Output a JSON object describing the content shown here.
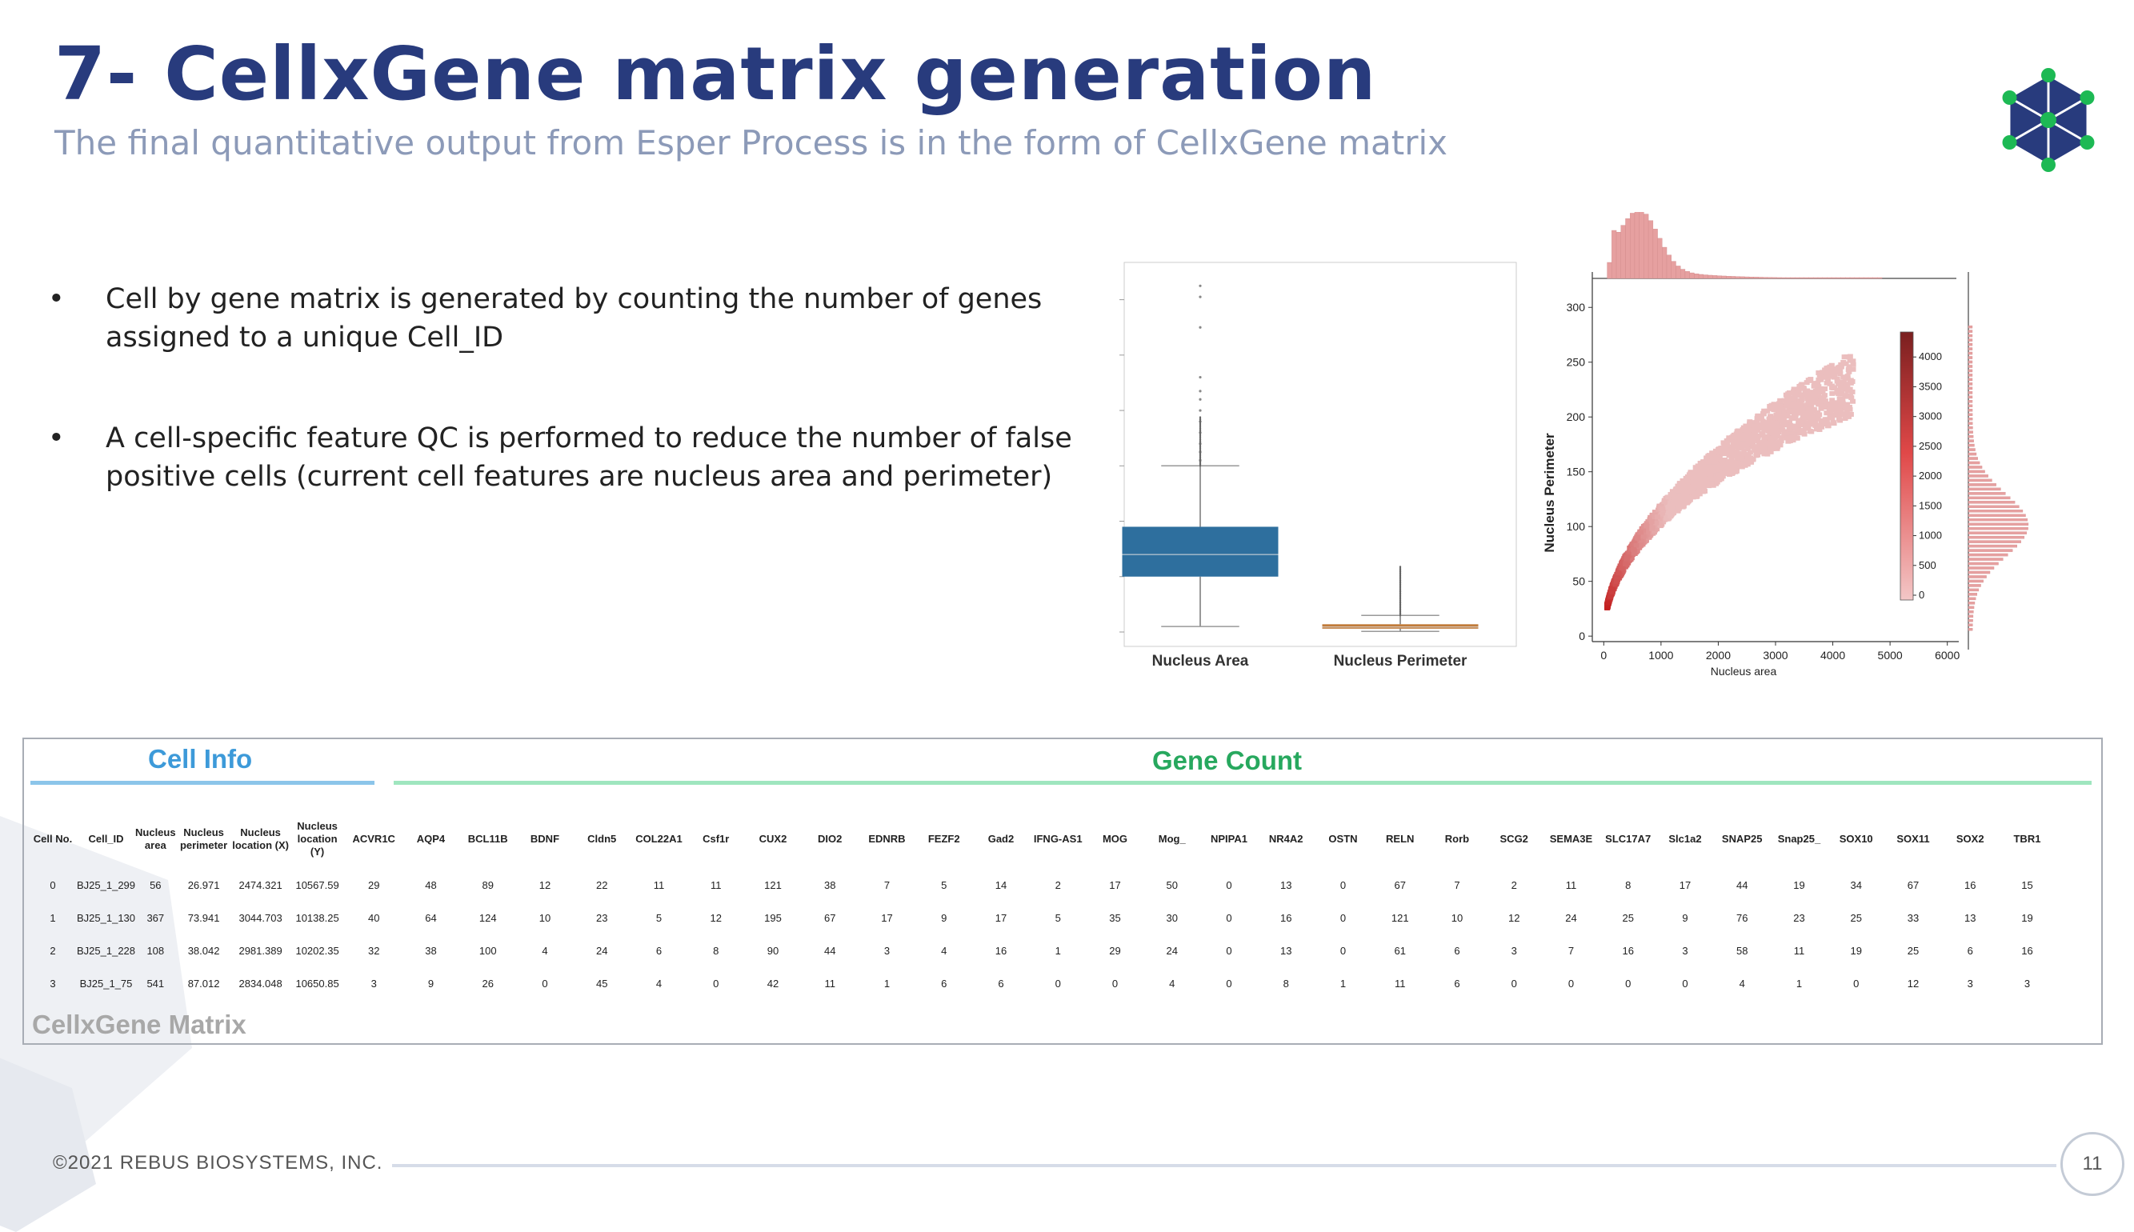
{
  "slide": {
    "title": "7- CellxGene matrix generation",
    "subtitle": "The final quantitative output from Esper Process is in the form of CellxGene matrix",
    "bullets": [
      {
        "marker": "•",
        "line1": "Cell by gene matrix is generated by counting the number of genes",
        "line2": "assigned to a unique Cell_ID"
      },
      {
        "marker": "•",
        "line1": "A cell-specific feature QC is performed to reduce the number of false",
        "line2": "positive cells (current cell features are nucleus area and perimeter)"
      }
    ],
    "colors": {
      "title": "#283b7d",
      "subtitle": "#8c9ab8",
      "logo_blue": "#283b7d",
      "logo_green": "#1db954",
      "cell_info": "#3d9ad9",
      "gene_count": "#27a85e",
      "box_area": "#2e6f9e",
      "box_perimeter": "#c07b3a"
    },
    "logo": {
      "icon": "hexagon-network-logo-icon"
    },
    "footer": {
      "copyright": "©2021 REBUS BIOSYSTEMS, INC.",
      "page_number": "11"
    }
  },
  "chart_data": [
    {
      "type": "box",
      "categories": [
        "Nucleus Area",
        "Nucleus Perimeter"
      ],
      "series": [
        {
          "category": "Nucleus Area",
          "q1": 1000,
          "median": 1400,
          "q3": 1900,
          "whisker_low": 100,
          "whisker_high": 3000,
          "outliers": [
            3100,
            3250,
            3400,
            3600,
            3800,
            4000,
            4200,
            4350,
            4600,
            5500,
            6050,
            6250
          ]
        },
        {
          "category": "Nucleus Perimeter",
          "q1": 60,
          "median": 90,
          "q3": 140,
          "whisker_low": 10,
          "whisker_high": 300,
          "outliers": []
        }
      ],
      "ylim": [
        0,
        6500
      ]
    },
    {
      "type": "heatmap",
      "subtype": "hexbin joint plot with marginal histograms",
      "xlabel": "Nucleus area",
      "ylabel": "Nucleus Perimeter",
      "x_ticks": [
        0,
        1000,
        2000,
        3000,
        4000,
        5000,
        6000
      ],
      "y_ticks": [
        0,
        50,
        100,
        150,
        200,
        250,
        300
      ],
      "colorbar_ticks": [
        0,
        500,
        1000,
        1500,
        2000,
        2500,
        3000,
        3500,
        4000
      ],
      "xlim": [
        -200,
        6200
      ],
      "ylim": [
        -5,
        325
      ],
      "colorbar_range": [
        0,
        4500
      ],
      "relation": "perimeter ≈ 3.5·sqrt(area)"
    }
  ],
  "table": {
    "cell_info_title": "Cell Info",
    "gene_count_title": "Gene Count",
    "matrix_label": "CellxGene Matrix",
    "columns": [
      "Cell No.",
      "Cell_ID",
      "Nucleus area",
      "Nucleus perimeter",
      "Nucleus location (X)",
      "Nucleus location (Y)",
      "ACVR1C",
      "AQP4",
      "BCL11B",
      "BDNF",
      "Cldn5",
      "COL22A1",
      "Csf1r",
      "CUX2",
      "DIO2",
      "EDNRB",
      "FEZF2",
      "Gad2",
      "IFNG-AS1",
      "MOG",
      "Mog_",
      "NPIPA1",
      "NR4A2",
      "OSTN",
      "RELN",
      "Rorb",
      "SCG2",
      "SEMA3E",
      "SLC17A7",
      "Slc1a2",
      "SNAP25",
      "Snap25_",
      "SOX10",
      "SOX11",
      "SOX2",
      "TBR1"
    ],
    "rows": [
      [
        "0",
        "BJ25_1_299",
        "56",
        "26.971",
        "2474.321",
        "10567.59",
        "29",
        "48",
        "89",
        "12",
        "22",
        "11",
        "11",
        "121",
        "38",
        "7",
        "5",
        "14",
        "2",
        "17",
        "50",
        "0",
        "13",
        "0",
        "67",
        "7",
        "2",
        "11",
        "8",
        "17",
        "44",
        "19",
        "34",
        "67",
        "16",
        "15"
      ],
      [
        "1",
        "BJ25_1_130",
        "367",
        "73.941",
        "3044.703",
        "10138.25",
        "40",
        "64",
        "124",
        "10",
        "23",
        "5",
        "12",
        "195",
        "67",
        "17",
        "9",
        "17",
        "5",
        "35",
        "30",
        "0",
        "16",
        "0",
        "121",
        "10",
        "12",
        "24",
        "25",
        "9",
        "76",
        "23",
        "25",
        "33",
        "13",
        "19"
      ],
      [
        "2",
        "BJ25_1_228",
        "108",
        "38.042",
        "2981.389",
        "10202.35",
        "32",
        "38",
        "100",
        "4",
        "24",
        "6",
        "8",
        "90",
        "44",
        "3",
        "4",
        "16",
        "1",
        "29",
        "24",
        "0",
        "13",
        "0",
        "61",
        "6",
        "3",
        "7",
        "16",
        "3",
        "58",
        "11",
        "19",
        "25",
        "6",
        "16"
      ],
      [
        "3",
        "BJ25_1_75",
        "541",
        "87.012",
        "2834.048",
        "10650.85",
        "3",
        "9",
        "26",
        "0",
        "45",
        "4",
        "0",
        "42",
        "11",
        "1",
        "6",
        "6",
        "0",
        "0",
        "4",
        "0",
        "8",
        "1",
        "11",
        "6",
        "0",
        "0",
        "0",
        "0",
        "4",
        "1",
        "0",
        "12",
        "3",
        "3"
      ]
    ]
  }
}
